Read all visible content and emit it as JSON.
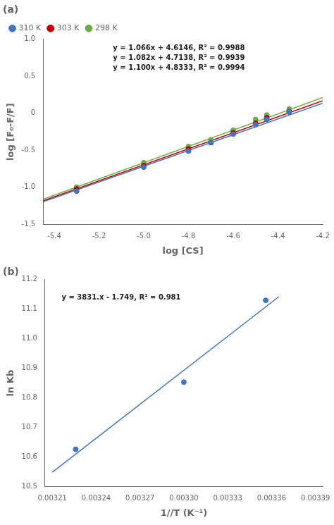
{
  "chart_data": [
    {
      "type": "scatter",
      "title": "(a)",
      "x_label": "log [CS]",
      "y_label": "log [F₀-F/F]",
      "xlim": [
        -5.45,
        -4.2
      ],
      "ylim": [
        -1.5,
        1.0
      ],
      "xticks": [
        -5.4,
        -5.2,
        {
          "value": -5.0,
          "label": "-5.0"
        },
        -4.8,
        -4.6,
        -4.4,
        -4.2
      ],
      "yticks": [
        -1.5,
        {
          "value": -1.0,
          "label": "-1.0"
        },
        -0.5,
        0,
        0.5,
        {
          "value": 1.0,
          "label": "1.0"
        }
      ],
      "grid": false,
      "legend": "upper left",
      "series": [
        {
          "name": "310 K",
          "color": "#4472C4",
          "x": [
            -5.3,
            -5.0,
            -4.8,
            -4.7,
            -4.6,
            -4.5,
            -4.45,
            -4.35
          ],
          "values": [
            -1.051,
            -0.727,
            -0.509,
            -0.392,
            -0.281,
            -0.153,
            -0.082,
            0.017
          ],
          "line": {
            "x": [
              -5.45,
              -4.2
            ],
            "values": [
              -1.1951,
              0.1374
            ]
          }
        },
        {
          "name": "303 K",
          "color": "#C00000",
          "x": [
            -5.3,
            -5.0,
            -4.8,
            -4.7,
            -4.6,
            -4.5,
            -4.45,
            -4.35
          ],
          "values": [
            -1.022,
            -0.706,
            -0.48,
            -0.396,
            -0.263,
            -0.134,
            -0.06,
            0.022
          ],
          "line": {
            "x": [
              -5.45,
              -4.2
            ],
            "values": [
              -1.1831,
              0.1694
            ]
          }
        },
        {
          "name": "298 K",
          "color": "#70AD47",
          "x": [
            -5.3,
            -5.0,
            -4.8,
            -4.7,
            -4.6,
            -4.5,
            -4.45,
            -4.35
          ],
          "values": [
            -0.997,
            -0.667,
            -0.447,
            -0.357,
            -0.227,
            -0.082,
            -0.022,
            0.06
          ],
          "line": {
            "x": [
              -5.45,
              -4.2
            ],
            "values": [
              -1.1617,
              0.2133
            ]
          }
        }
      ],
      "annotations": [
        "y = 1.066x + 4.6146, R² = 0.9988",
        "y = 1.082x + 4.7138, R² = 0.9939",
        "y = 1.100x + 4.8333, R² = 0.9994"
      ]
    },
    {
      "type": "scatter",
      "title": "(b)",
      "x_label": "1//T (K⁻¹)",
      "y_label": "ln Kb",
      "xlim": [
        0.003205,
        0.003395
      ],
      "ylim": [
        10.5,
        11.2
      ],
      "xticks": [
        0.00321,
        0.00324,
        0.00327,
        {
          "value": 0.0033,
          "label": "0.00330"
        },
        0.00333,
        0.00336,
        0.00339
      ],
      "yticks": [
        10.5,
        10.6,
        10.7,
        10.8,
        10.9,
        {
          "value": 11.0,
          "label": "11.0"
        },
        11.1,
        11.2
      ],
      "grid": false,
      "color": "#4472C4",
      "x": [
        0.003226,
        0.0033,
        0.003356
      ],
      "values": [
        10.626,
        10.853,
        11.13
      ],
      "line": {
        "x": [
          0.00321,
          0.003365
        ],
        "values": [
          10.54851,
          11.142315
        ]
      },
      "annotations": [
        "y = 3831.x - 1.749, R² = 0.981"
      ]
    }
  ]
}
